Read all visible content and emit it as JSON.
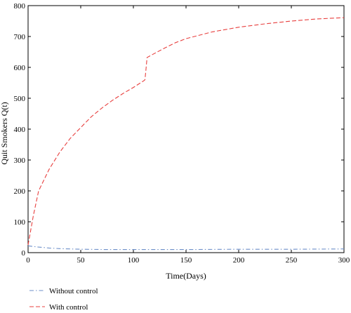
{
  "chart_data": {
    "type": "line",
    "title": "",
    "xlabel": "Time(Days)",
    "ylabel": "Quit Smokers Q(t)",
    "xlim": [
      0,
      300
    ],
    "ylim": [
      0,
      800
    ],
    "xticks": [
      0,
      50,
      100,
      150,
      200,
      250,
      300
    ],
    "yticks": [
      0,
      100,
      200,
      300,
      400,
      500,
      600,
      700,
      800
    ],
    "grid": false,
    "legend_position": "bottom-left",
    "series": [
      {
        "name": "Without control",
        "color": "#6d8fc9",
        "style": "dash-dot",
        "x": [
          0,
          10,
          20,
          30,
          40,
          50,
          75,
          100,
          150,
          200,
          250,
          300
        ],
        "y": [
          22,
          18,
          15,
          13,
          12,
          11,
          10,
          10,
          10,
          11,
          11,
          12
        ]
      },
      {
        "name": "With control",
        "color": "#e8403f",
        "style": "dashed",
        "x": [
          0,
          5,
          10,
          20,
          30,
          40,
          50,
          60,
          70,
          80,
          90,
          100,
          110,
          111,
          112,
          113,
          120,
          130,
          140,
          150,
          175,
          200,
          225,
          250,
          275,
          300
        ],
        "y": [
          25,
          120,
          200,
          270,
          325,
          370,
          405,
          440,
          468,
          493,
          515,
          535,
          557,
          560,
          595,
          632,
          645,
          663,
          680,
          693,
          715,
          730,
          741,
          750,
          757,
          761
        ]
      }
    ]
  }
}
